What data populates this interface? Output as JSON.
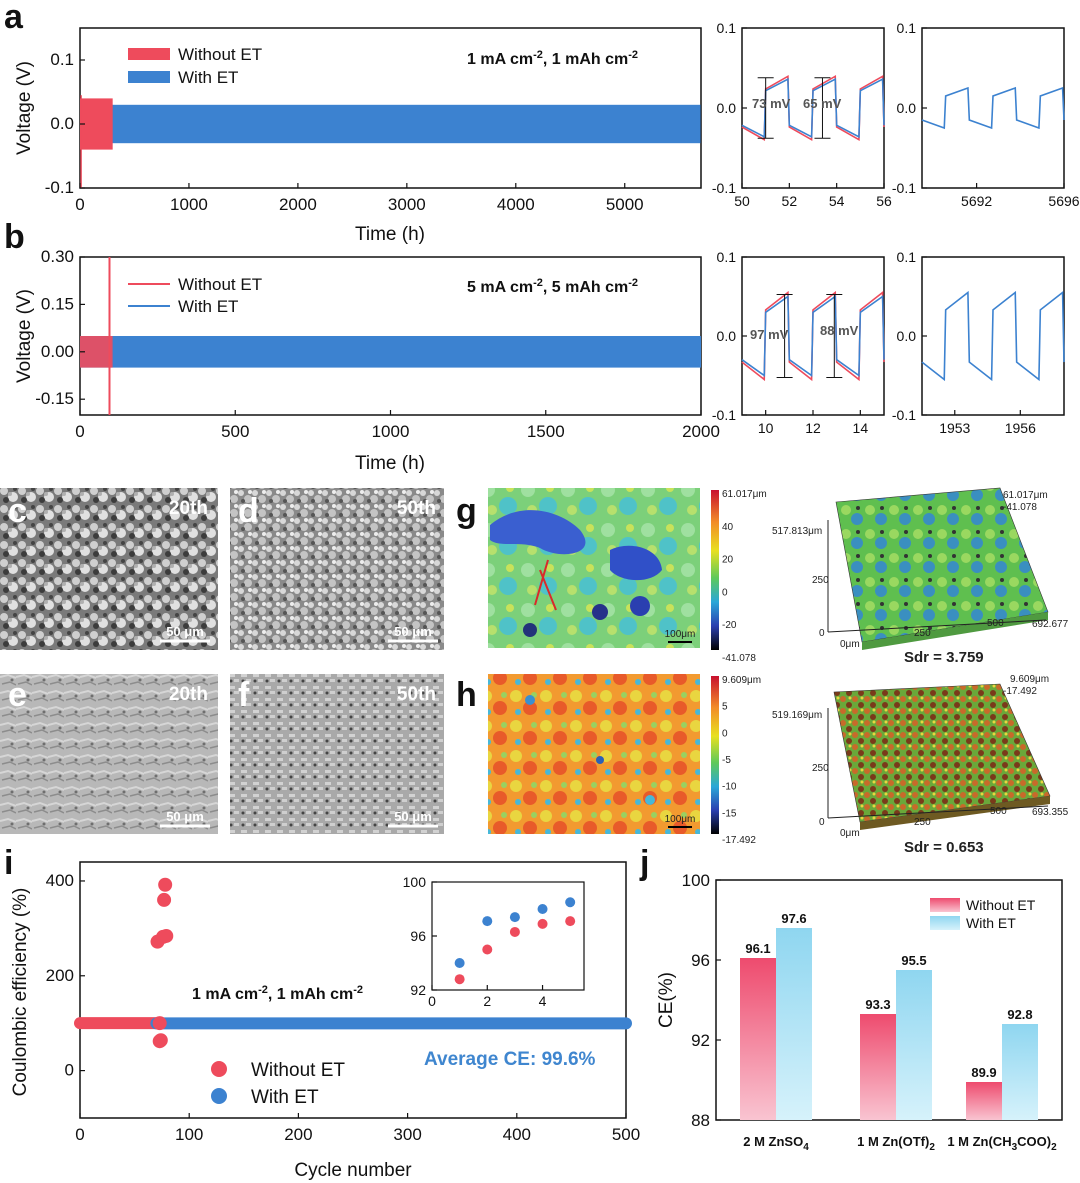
{
  "colors": {
    "without_et": "#ee4b5c",
    "with_et": "#3c82d0",
    "bar_without_top": "#ee4b6e",
    "bar_without_bottom": "#f9c4d1",
    "bar_with_top": "#8fd6f0",
    "bar_with_bottom": "#d6f2fb",
    "avg_text": "#3f86cf"
  },
  "panel_labels": [
    "a",
    "b",
    "c",
    "d",
    "e",
    "f",
    "g",
    "h",
    "i",
    "j"
  ],
  "chart_data": [
    {
      "id": "a",
      "type": "line",
      "xlabel": "Time (h)",
      "ylabel": "Voltage (V)",
      "xlim": [
        0,
        5700
      ],
      "ylim": [
        -0.1,
        0.15
      ],
      "xticks": [
        "0",
        "1000",
        "2000",
        "3000",
        "4000",
        "5000"
      ],
      "yticks": [
        "-0.1",
        "0.0",
        "0.1"
      ],
      "condition": "1 mA cm-2, 1 mAh cm-2",
      "legend_position": "top-left",
      "series": [
        {
          "name": "Without ET",
          "end_time": 300,
          "envelope": 0.04,
          "spike_high": 0.045,
          "spike_low": -0.1
        },
        {
          "name": "With ET",
          "end_time": 5696,
          "envelope": 0.03
        }
      ]
    },
    {
      "id": "a-inset-early",
      "type": "line",
      "xlim": [
        50,
        56
      ],
      "ylim": [
        -0.1,
        0.1
      ],
      "xticks": [
        "50",
        "52",
        "54",
        "56"
      ],
      "yticks": [
        "-0.1",
        "0.0",
        "0.1"
      ],
      "annotations": [
        "73 mV",
        "65 mV"
      ]
    },
    {
      "id": "a-inset-late",
      "type": "line",
      "xlim": [
        5689.5,
        5696
      ],
      "ylim": [
        -0.1,
        0.1
      ],
      "xticks": [
        "5692",
        "5696"
      ],
      "yticks": [
        "-0.1",
        "0.0",
        "0.1"
      ]
    },
    {
      "id": "b",
      "type": "line",
      "xlabel": "Time (h)",
      "ylabel": "Voltage (V)",
      "xlim": [
        0,
        2000
      ],
      "ylim": [
        -0.2,
        0.3
      ],
      "xticks": [
        "0",
        "500",
        "1000",
        "1500",
        "2000"
      ],
      "yticks": [
        "-0.15",
        "0.00",
        "0.15",
        "0.30"
      ],
      "condition": "5 mA cm-2, 5 mAh cm-2",
      "legend_position": "top-left",
      "series": [
        {
          "name": "Without ET",
          "end_time": 105,
          "envelope": 0.05,
          "spike_high": 0.3,
          "spike_low": -0.2
        },
        {
          "name": "With ET",
          "end_time": 2000,
          "envelope": 0.05
        }
      ]
    },
    {
      "id": "b-inset-early",
      "type": "line",
      "xlim": [
        9,
        15
      ],
      "ylim": [
        -0.1,
        0.1
      ],
      "xticks": [
        "10",
        "12",
        "14"
      ],
      "yticks": [
        "-0.1",
        "0.0",
        "0.1"
      ],
      "annotations": [
        "97 mV",
        "88 mV"
      ]
    },
    {
      "id": "b-inset-late",
      "type": "line",
      "xlim": [
        1951.5,
        1958
      ],
      "ylim": [
        -0.1,
        0.1
      ],
      "xticks": [
        "1953",
        "1956"
      ],
      "yticks": [
        "-0.1",
        "0.0",
        "0.1"
      ]
    },
    {
      "id": "g",
      "type": "heatmap",
      "colorbar_ticks": [
        "61.017μm",
        "40",
        "20",
        "0",
        "-20",
        "-41.078"
      ],
      "scale_bar": "100μm",
      "surface_labels": [
        "61.017μm",
        "-41.078",
        "517.813μm",
        "250",
        "0",
        "0μm",
        "250",
        "500",
        "692.677"
      ],
      "sdr": "Sdr = 3.759"
    },
    {
      "id": "h",
      "type": "heatmap",
      "colorbar_ticks": [
        "9.609μm",
        "5",
        "0",
        "-5",
        "-10",
        "-15",
        "-17.492"
      ],
      "scale_bar": "100μm",
      "surface_labels": [
        "9.609μm",
        "-17.492",
        "519.169μm",
        "250",
        "0",
        "0μm",
        "250",
        "500",
        "693.355"
      ],
      "sdr": "Sdr = 0.653"
    },
    {
      "id": "i",
      "type": "scatter",
      "xlabel": "Cycle number",
      "ylabel": "Coulombic efficiency (%)",
      "xlim": [
        0,
        500
      ],
      "ylim": [
        -100,
        440
      ],
      "xticks": [
        "0",
        "100",
        "200",
        "300",
        "400",
        "500"
      ],
      "yticks": [
        "0",
        "200",
        "400"
      ],
      "condition": "1 mA cm-2, 1 mAh cm-2",
      "average_ce": "Average CE: 99.6%",
      "legend_position": "bottom-left",
      "series": [
        {
          "name": "Without ET",
          "baseline_to": 70,
          "outliers": [
            [
              71,
              272
            ],
            [
              73,
              100
            ],
            [
              73,
              62
            ],
            [
              74,
              64
            ],
            [
              76,
              282
            ],
            [
              77,
              360
            ],
            [
              78,
              392
            ],
            [
              79,
              284
            ]
          ]
        },
        {
          "name": "With ET",
          "baseline_from": 70,
          "baseline_to": 500,
          "value": 99.6
        }
      ],
      "inset": {
        "xlim": [
          0,
          5.5
        ],
        "ylim": [
          92,
          100
        ],
        "xticks": [
          "0",
          "2",
          "4"
        ],
        "yticks": [
          "92",
          "96",
          "100"
        ],
        "series": [
          {
            "name": "Without ET",
            "x": [
              1,
              2,
              3,
              4,
              5
            ],
            "y": [
              92.8,
              95.0,
              96.3,
              96.9,
              97.1
            ]
          },
          {
            "name": "With ET",
            "x": [
              1,
              2,
              3,
              4,
              5
            ],
            "y": [
              94.0,
              97.1,
              97.4,
              98.0,
              98.5
            ]
          }
        ]
      }
    },
    {
      "id": "j",
      "type": "bar",
      "ylabel": "CE(%)",
      "ylim": [
        88,
        100
      ],
      "yticks": [
        "88",
        "92",
        "96",
        "100"
      ],
      "categories": [
        {
          "main": "2 M ZnSO",
          "sub": "4",
          "tail": ""
        },
        {
          "main": "1 M Zn(OTf)",
          "sub": "2",
          "tail": ""
        },
        {
          "main": "1 M Zn(CH",
          "sub": "3",
          "mid": "COO)",
          "sub2": "2"
        }
      ],
      "series": [
        {
          "name": "Without ET",
          "values": [
            96.1,
            93.3,
            89.9
          ]
        },
        {
          "name": "With ET",
          "values": [
            97.6,
            95.5,
            92.8
          ]
        }
      ],
      "legend_position": "top-right"
    }
  ],
  "sem": [
    {
      "panel": "c",
      "cycle": "20th",
      "scale": "50 μm"
    },
    {
      "panel": "d",
      "cycle": "50th",
      "scale": "50 μm"
    },
    {
      "panel": "e",
      "cycle": "20th",
      "scale": "50 μm"
    },
    {
      "panel": "f",
      "cycle": "50th",
      "scale": "50 μm"
    }
  ]
}
